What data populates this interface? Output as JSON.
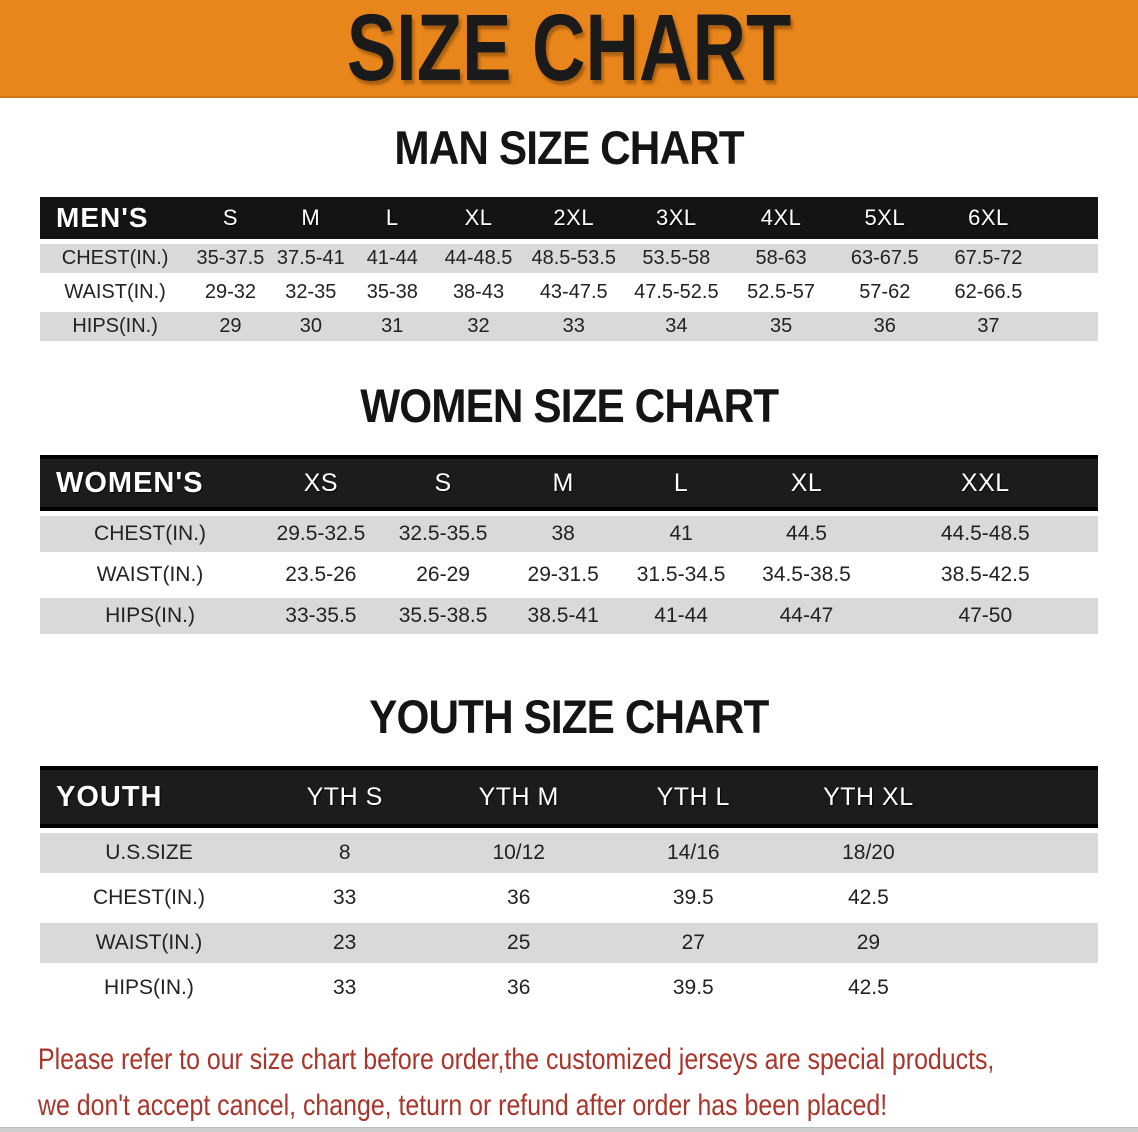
{
  "banner": {
    "title": "SIZE CHART"
  },
  "sections": [
    {
      "id": "men",
      "heading": "MAN SIZE CHART",
      "header_label": "MEN'S",
      "columns": [
        "S",
        "M",
        "L",
        "XL",
        "2XL",
        "3XL",
        "4XL",
        "5XL",
        "6XL"
      ],
      "rows": [
        {
          "label": "CHEST(IN.)",
          "values": [
            "35-37.5",
            "37.5-41",
            "41-44",
            "44-48.5",
            "48.5-53.5",
            "53.5-58",
            "58-63",
            "63-67.5",
            "67.5-72"
          ]
        },
        {
          "label": "WAIST(IN.)",
          "values": [
            "29-32",
            "32-35",
            "35-38",
            "38-43",
            "43-47.5",
            "47.5-52.5",
            "52.5-57",
            "57-62",
            "62-66.5"
          ]
        },
        {
          "label": "HIPS(IN.)",
          "values": [
            "29",
            "30",
            "31",
            "32",
            "33",
            "34",
            "35",
            "36",
            "37"
          ]
        }
      ]
    },
    {
      "id": "women",
      "heading": "WOMEN SIZE CHART",
      "header_label": "WOMEN'S",
      "columns": [
        "XS",
        "S",
        "M",
        "L",
        "XL",
        "XXL"
      ],
      "rows": [
        {
          "label": "CHEST(IN.)",
          "values": [
            "29.5-32.5",
            "32.5-35.5",
            "38",
            "41",
            "44.5",
            "44.5-48.5"
          ]
        },
        {
          "label": "WAIST(IN.)",
          "values": [
            "23.5-26",
            "26-29",
            "29-31.5",
            "31.5-34.5",
            "34.5-38.5",
            "38.5-42.5"
          ]
        },
        {
          "label": "HIPS(IN.)",
          "values": [
            "33-35.5",
            "35.5-38.5",
            "38.5-41",
            "41-44",
            "44-47",
            "47-50"
          ]
        }
      ]
    },
    {
      "id": "youth",
      "heading": "YOUTH SIZE CHART",
      "header_label": "YOUTH",
      "columns": [
        "YTH S",
        "YTH M",
        "YTH L",
        "YTH XL"
      ],
      "rows": [
        {
          "label": "U.S.SIZE",
          "values": [
            "8",
            "10/12",
            "14/16",
            "18/20"
          ]
        },
        {
          "label": "CHEST(IN.)",
          "values": [
            "33",
            "36",
            "39.5",
            "42.5"
          ]
        },
        {
          "label": "WAIST(IN.)",
          "values": [
            "23",
            "25",
            "27",
            "29"
          ]
        },
        {
          "label": "HIPS(IN.)",
          "values": [
            "33",
            "36",
            "39.5",
            "42.5"
          ]
        }
      ]
    }
  ],
  "footer": {
    "line1": "Please refer to our size chart before order,the customized jerseys are special products,",
    "line2": "we don't accept cancel, change, teturn or refund after order has been placed!"
  },
  "colors": {
    "banner_orange": "#E8861C",
    "header_black": "#141414",
    "row_grey": "#D9D9D9",
    "notice_red": "#A9352B"
  }
}
